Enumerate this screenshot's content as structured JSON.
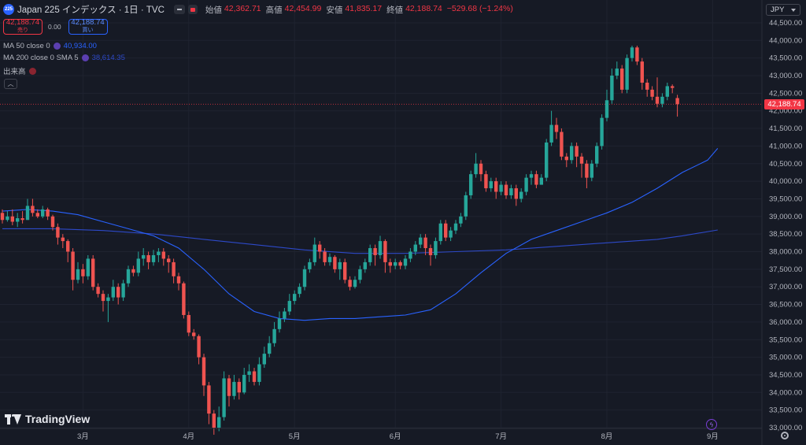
{
  "header": {
    "symbol_icon": "225",
    "title": "Japan 225 インデックス · 1日 · TVC",
    "ohlc": [
      {
        "label": "始値",
        "value": "42,362.71"
      },
      {
        "label": "高値",
        "value": "42,454.99"
      },
      {
        "label": "安値",
        "value": "41,835.17"
      },
      {
        "label": "終値",
        "value": "42,188.74"
      },
      {
        "label": "",
        "value": "−529.68 (−1.24%)"
      }
    ]
  },
  "trade": {
    "sell_price": "42,188.74",
    "sell_label": "売り",
    "spread": "0.00",
    "buy_price": "42,188.74",
    "buy_label": "買い"
  },
  "indicators": [
    {
      "label": "MA 50 close 0",
      "value": "40,934.00"
    },
    {
      "label": "MA 200 close 0 SMA 5",
      "value": "38,614.35"
    },
    {
      "label": "出来高",
      "value": ""
    }
  ],
  "currency": "JPY",
  "last_price_tag": "42,188.74",
  "branding": "TradingView",
  "colors": {
    "up": "#26a69a",
    "down": "#ef5350",
    "ma50": "#2962ff",
    "ma200": "#2d49c8",
    "background": "#161a25"
  },
  "icons": {
    "settings": "gear-icon",
    "alert": "flash-icon",
    "collapse": "chevron-up-icon"
  },
  "chart_data": {
    "type": "candlestick",
    "y_axis": {
      "min": 33000,
      "max": 44500,
      "ticks": [
        33000,
        33500,
        34000,
        34500,
        35000,
        35500,
        36000,
        36500,
        37000,
        37500,
        38000,
        38500,
        39000,
        39500,
        40000,
        40500,
        41000,
        41500,
        42000,
        42500,
        43000,
        43500,
        44000,
        44500
      ]
    },
    "x_axis": {
      "ticks": [
        "3月",
        "4月",
        "5月",
        "6月",
        "7月",
        "8月",
        "9月"
      ]
    },
    "last_price": 42188.74,
    "candles": [
      [
        39100,
        38900,
        39200,
        38800
      ],
      [
        38900,
        39000,
        39150,
        38850
      ],
      [
        39000,
        38850,
        39200,
        38750
      ],
      [
        38850,
        38950,
        39100,
        38700
      ],
      [
        38950,
        38900,
        39150,
        38800
      ],
      [
        38900,
        39300,
        39500,
        38900
      ],
      [
        39300,
        39100,
        39500,
        39000
      ],
      [
        39100,
        39000,
        39200,
        38950
      ],
      [
        39000,
        39200,
        39300,
        38950
      ],
      [
        39200,
        39000,
        39250,
        38900
      ],
      [
        39000,
        38700,
        39050,
        38600
      ],
      [
        38700,
        38400,
        38800,
        38200
      ],
      [
        38400,
        38300,
        38500,
        38100
      ],
      [
        38300,
        38000,
        38350,
        37700
      ],
      [
        38000,
        37200,
        38100,
        36900
      ],
      [
        37200,
        37500,
        37700,
        37100
      ],
      [
        37500,
        37300,
        37650,
        37100
      ],
      [
        37300,
        37800,
        37900,
        37200
      ],
      [
        37800,
        37000,
        37900,
        36900
      ],
      [
        37000,
        36800,
        37100,
        36700
      ],
      [
        36800,
        36600,
        36900,
        36300
      ],
      [
        36600,
        36700,
        36800,
        36000
      ],
      [
        36700,
        37000,
        37200,
        36600
      ],
      [
        37000,
        36700,
        37100,
        36500
      ],
      [
        36700,
        37100,
        37200,
        36600
      ],
      [
        37100,
        37500,
        37600,
        37000
      ],
      [
        37500,
        37400,
        37600,
        37300
      ],
      [
        37400,
        37800,
        38000,
        37300
      ],
      [
        37800,
        37900,
        38100,
        37600
      ],
      [
        37900,
        37700,
        38000,
        37500
      ],
      [
        37700,
        37900,
        38050,
        37600
      ],
      [
        37900,
        38000,
        38100,
        37700
      ],
      [
        38000,
        37800,
        38100,
        37600
      ],
      [
        37800,
        37700,
        37900,
        37400
      ],
      [
        37700,
        37300,
        37800,
        37100
      ],
      [
        37300,
        37100,
        37400,
        36900
      ],
      [
        37100,
        36200,
        37150,
        36100
      ],
      [
        36200,
        35700,
        36300,
        35600
      ],
      [
        35700,
        35600,
        35800,
        35500
      ],
      [
        35600,
        35000,
        35650,
        34800
      ],
      [
        35000,
        34200,
        35100,
        33900
      ],
      [
        34200,
        33400,
        34300,
        33100
      ],
      [
        33400,
        33000,
        33500,
        32800
      ],
      [
        33000,
        33300,
        33600,
        32900
      ],
      [
        33300,
        34400,
        34600,
        33200
      ],
      [
        34400,
        33900,
        34500,
        33600
      ],
      [
        33900,
        34300,
        34500,
        33800
      ],
      [
        34300,
        34000,
        34400,
        33800
      ],
      [
        34000,
        34500,
        34700,
        33950
      ],
      [
        34500,
        34600,
        34800,
        34300
      ],
      [
        34600,
        34300,
        34700,
        34200
      ],
      [
        34300,
        34800,
        35000,
        34200
      ],
      [
        34800,
        35100,
        35300,
        34700
      ],
      [
        35100,
        35400,
        35600,
        35000
      ],
      [
        35400,
        35800,
        36000,
        35300
      ],
      [
        35800,
        36100,
        36300,
        35700
      ],
      [
        36100,
        36300,
        36400,
        36000
      ],
      [
        36300,
        36600,
        36800,
        36200
      ],
      [
        36600,
        36800,
        36900,
        36500
      ],
      [
        36800,
        37000,
        37100,
        36700
      ],
      [
        37000,
        37500,
        37600,
        36900
      ],
      [
        37500,
        37700,
        37800,
        37400
      ],
      [
        37700,
        38200,
        38400,
        37600
      ],
      [
        38200,
        38000,
        38300,
        37800
      ],
      [
        38000,
        37700,
        38100,
        37600
      ],
      [
        37700,
        37850,
        37950,
        37600
      ],
      [
        37850,
        37500,
        37900,
        37400
      ],
      [
        37500,
        37700,
        37800,
        37200
      ],
      [
        37700,
        37200,
        37800,
        37100
      ],
      [
        37200,
        37000,
        37300,
        36900
      ],
      [
        37000,
        37200,
        37300,
        36950
      ],
      [
        37200,
        37500,
        37600,
        37100
      ],
      [
        37500,
        37700,
        37800,
        37400
      ],
      [
        37700,
        38100,
        38200,
        37600
      ],
      [
        38100,
        37900,
        38200,
        37600
      ],
      [
        37900,
        38300,
        38450,
        37800
      ],
      [
        38300,
        37700,
        38350,
        37400
      ],
      [
        37700,
        37600,
        37800,
        37400
      ],
      [
        37600,
        37700,
        37800,
        37500
      ],
      [
        37700,
        37600,
        37750,
        37500
      ],
      [
        37600,
        37800,
        37900,
        37500
      ],
      [
        37800,
        38000,
        38100,
        37700
      ],
      [
        38000,
        38200,
        38300,
        37900
      ],
      [
        38200,
        38400,
        38500,
        38100
      ],
      [
        38400,
        38100,
        38500,
        37900
      ],
      [
        38100,
        37900,
        38200,
        37600
      ],
      [
        37900,
        38300,
        38400,
        37800
      ],
      [
        38300,
        38800,
        38900,
        38200
      ],
      [
        38800,
        38400,
        38900,
        38300
      ],
      [
        38400,
        38600,
        38700,
        38300
      ],
      [
        38600,
        38800,
        38900,
        38500
      ],
      [
        38800,
        39000,
        39100,
        38700
      ],
      [
        39000,
        39600,
        39700,
        38900
      ],
      [
        39600,
        40200,
        40300,
        39500
      ],
      [
        40200,
        40500,
        40800,
        40100
      ],
      [
        40500,
        40200,
        40600,
        40000
      ],
      [
        40200,
        39800,
        40300,
        39700
      ],
      [
        39800,
        40000,
        40100,
        39700
      ],
      [
        40000,
        39700,
        40100,
        39500
      ],
      [
        39700,
        39900,
        40000,
        39600
      ],
      [
        39900,
        39600,
        40000,
        39500
      ],
      [
        39600,
        39800,
        39900,
        39500
      ],
      [
        39800,
        39500,
        39900,
        39300
      ],
      [
        39500,
        39700,
        39800,
        39400
      ],
      [
        39700,
        40100,
        40200,
        39600
      ],
      [
        40100,
        40200,
        40300,
        39900
      ],
      [
        40200,
        39900,
        40300,
        39800
      ],
      [
        39900,
        40100,
        40200,
        39900
      ],
      [
        40100,
        41100,
        41200,
        40000
      ],
      [
        41100,
        41600,
        42000,
        41000
      ],
      [
        41600,
        41400,
        41800,
        41200
      ],
      [
        41400,
        40700,
        41500,
        40600
      ],
      [
        40700,
        40600,
        40800,
        40400
      ],
      [
        40600,
        41000,
        41100,
        40500
      ],
      [
        41000,
        40700,
        41100,
        40400
      ],
      [
        40700,
        40500,
        40800,
        40100
      ],
      [
        40500,
        40100,
        40600,
        39800
      ],
      [
        40100,
        40500,
        40600,
        40000
      ],
      [
        40500,
        41000,
        41100,
        40400
      ],
      [
        41000,
        41800,
        41900,
        40900
      ],
      [
        41800,
        42300,
        42600,
        41700
      ],
      [
        42300,
        43000,
        43200,
        42200
      ],
      [
        43000,
        43200,
        43400,
        42900
      ],
      [
        43200,
        42600,
        43300,
        42500
      ],
      [
        42600,
        43500,
        43600,
        42500
      ],
      [
        43500,
        43800,
        43850,
        43400
      ],
      [
        43800,
        43400,
        43850,
        43300
      ],
      [
        43400,
        42800,
        43500,
        42600
      ],
      [
        42800,
        42600,
        42900,
        42400
      ],
      [
        42600,
        42400,
        42700,
        42300
      ],
      [
        42400,
        42200,
        42950,
        42100
      ],
      [
        42200,
        42400,
        42500,
        42100
      ],
      [
        42400,
        42700,
        42800,
        42300
      ],
      [
        42700,
        42650,
        42750,
        42500
      ],
      [
        42362.71,
        42188.74,
        42454.99,
        41835.17
      ]
    ],
    "ma50": [
      [
        0,
        39150
      ],
      [
        5,
        39200
      ],
      [
        10,
        39150
      ],
      [
        15,
        39050
      ],
      [
        20,
        38850
      ],
      [
        25,
        38650
      ],
      [
        30,
        38450
      ],
      [
        35,
        38100
      ],
      [
        40,
        37500
      ],
      [
        45,
        36800
      ],
      [
        50,
        36300
      ],
      [
        55,
        36100
      ],
      [
        60,
        36050
      ],
      [
        65,
        36100
      ],
      [
        70,
        36100
      ],
      [
        75,
        36150
      ],
      [
        80,
        36200
      ],
      [
        85,
        36350
      ],
      [
        90,
        36800
      ],
      [
        95,
        37400
      ],
      [
        100,
        37950
      ],
      [
        105,
        38350
      ],
      [
        110,
        38600
      ],
      [
        115,
        38850
      ],
      [
        120,
        39100
      ],
      [
        125,
        39400
      ],
      [
        130,
        39800
      ],
      [
        135,
        40250
      ],
      [
        140,
        40600
      ],
      [
        142,
        40934
      ]
    ],
    "ma200": [
      [
        0,
        38650
      ],
      [
        10,
        38650
      ],
      [
        20,
        38600
      ],
      [
        30,
        38500
      ],
      [
        40,
        38350
      ],
      [
        50,
        38200
      ],
      [
        60,
        38050
      ],
      [
        70,
        37950
      ],
      [
        80,
        37950
      ],
      [
        90,
        38000
      ],
      [
        100,
        38050
      ],
      [
        110,
        38150
      ],
      [
        120,
        38250
      ],
      [
        130,
        38350
      ],
      [
        135,
        38450
      ],
      [
        142,
        38614.35
      ]
    ]
  }
}
